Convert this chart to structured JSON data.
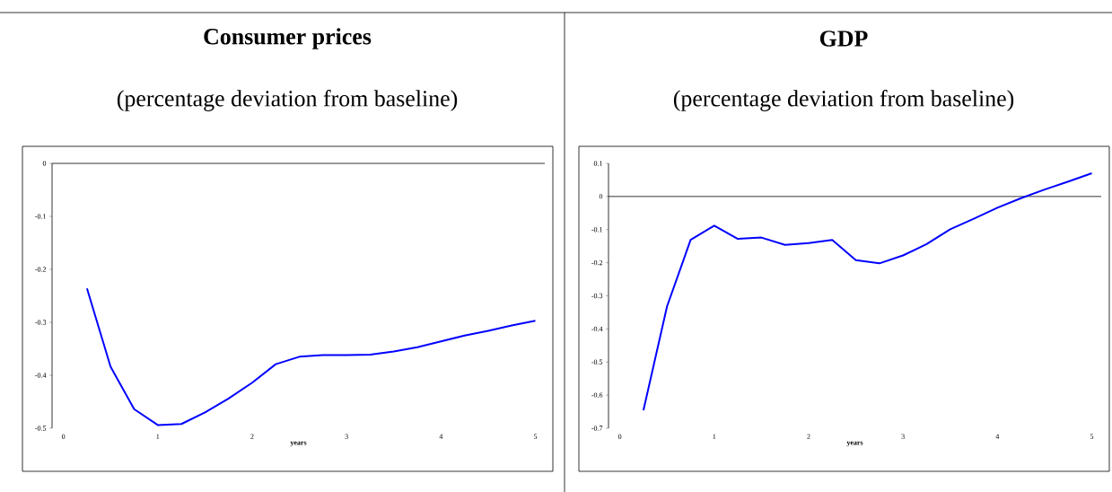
{
  "chart_data": [
    {
      "type": "line",
      "title": "Consumer prices",
      "subtitle": "(percentage deviation from baseline)",
      "xlabel": "years",
      "x": [
        0.25,
        0.5,
        0.75,
        1,
        1.25,
        1.5,
        1.75,
        2,
        2.25,
        2.5,
        2.75,
        3,
        3.25,
        3.5,
        3.75,
        4,
        4.25,
        4.5,
        4.75,
        5
      ],
      "xlim": [
        -0.12,
        5.1
      ],
      "xticks": [
        0,
        1,
        2,
        3,
        4,
        5
      ],
      "ylim": [
        -0.5,
        0
      ],
      "yticks": [
        {
          "value": -0.5,
          "label": "-0.5"
        },
        {
          "value": -0.4,
          "label": "-0.4"
        },
        {
          "value": -0.3,
          "label": "-0.3"
        },
        {
          "value": -0.2,
          "label": "-0.2"
        },
        {
          "value": -0.1,
          "label": "-0.1"
        },
        0
      ],
      "series": [
        {
          "color": "#0000ff",
          "values": [
            -0.236,
            -0.384,
            -0.464,
            -0.494,
            -0.492,
            -0.47,
            -0.444,
            -0.414,
            -0.379,
            -0.365,
            -0.362,
            -0.362,
            -0.361,
            -0.355,
            -0.347,
            -0.336,
            -0.325,
            -0.316,
            -0.306,
            -0.297
          ]
        }
      ]
    },
    {
      "type": "line",
      "title": "GDP",
      "subtitle": "(percentage deviation from baseline)",
      "xlabel": "years",
      "x": [
        0.25,
        0.5,
        0.75,
        1,
        1.25,
        1.5,
        1.75,
        2,
        2.25,
        2.5,
        2.75,
        3,
        3.25,
        3.5,
        3.75,
        4,
        4.25,
        4.5,
        4.75,
        5
      ],
      "xlim": [
        -0.12,
        5.1
      ],
      "xticks": [
        0,
        1,
        2,
        3,
        4,
        5
      ],
      "ylim": [
        -0.7,
        0.1
      ],
      "yticks": [
        {
          "value": -0.7,
          "label": "-0.7"
        },
        {
          "value": -0.6,
          "label": "-0.6"
        },
        {
          "value": -0.5,
          "label": "-0.5"
        },
        {
          "value": -0.4,
          "label": "-0.4"
        },
        {
          "value": -0.3,
          "label": "-0.3"
        },
        {
          "value": -0.2,
          "label": "-0.2"
        },
        {
          "value": -0.1,
          "label": "-0.1"
        },
        0,
        0.1
      ],
      "series": [
        {
          "color": "#0000ff",
          "values": [
            -0.646,
            -0.332,
            -0.131,
            -0.088,
            -0.128,
            -0.124,
            -0.146,
            -0.141,
            -0.131,
            -0.192,
            -0.202,
            -0.178,
            -0.144,
            -0.099,
            -0.067,
            -0.034,
            -0.005,
            0.021,
            0.045,
            0.07
          ]
        }
      ]
    }
  ]
}
